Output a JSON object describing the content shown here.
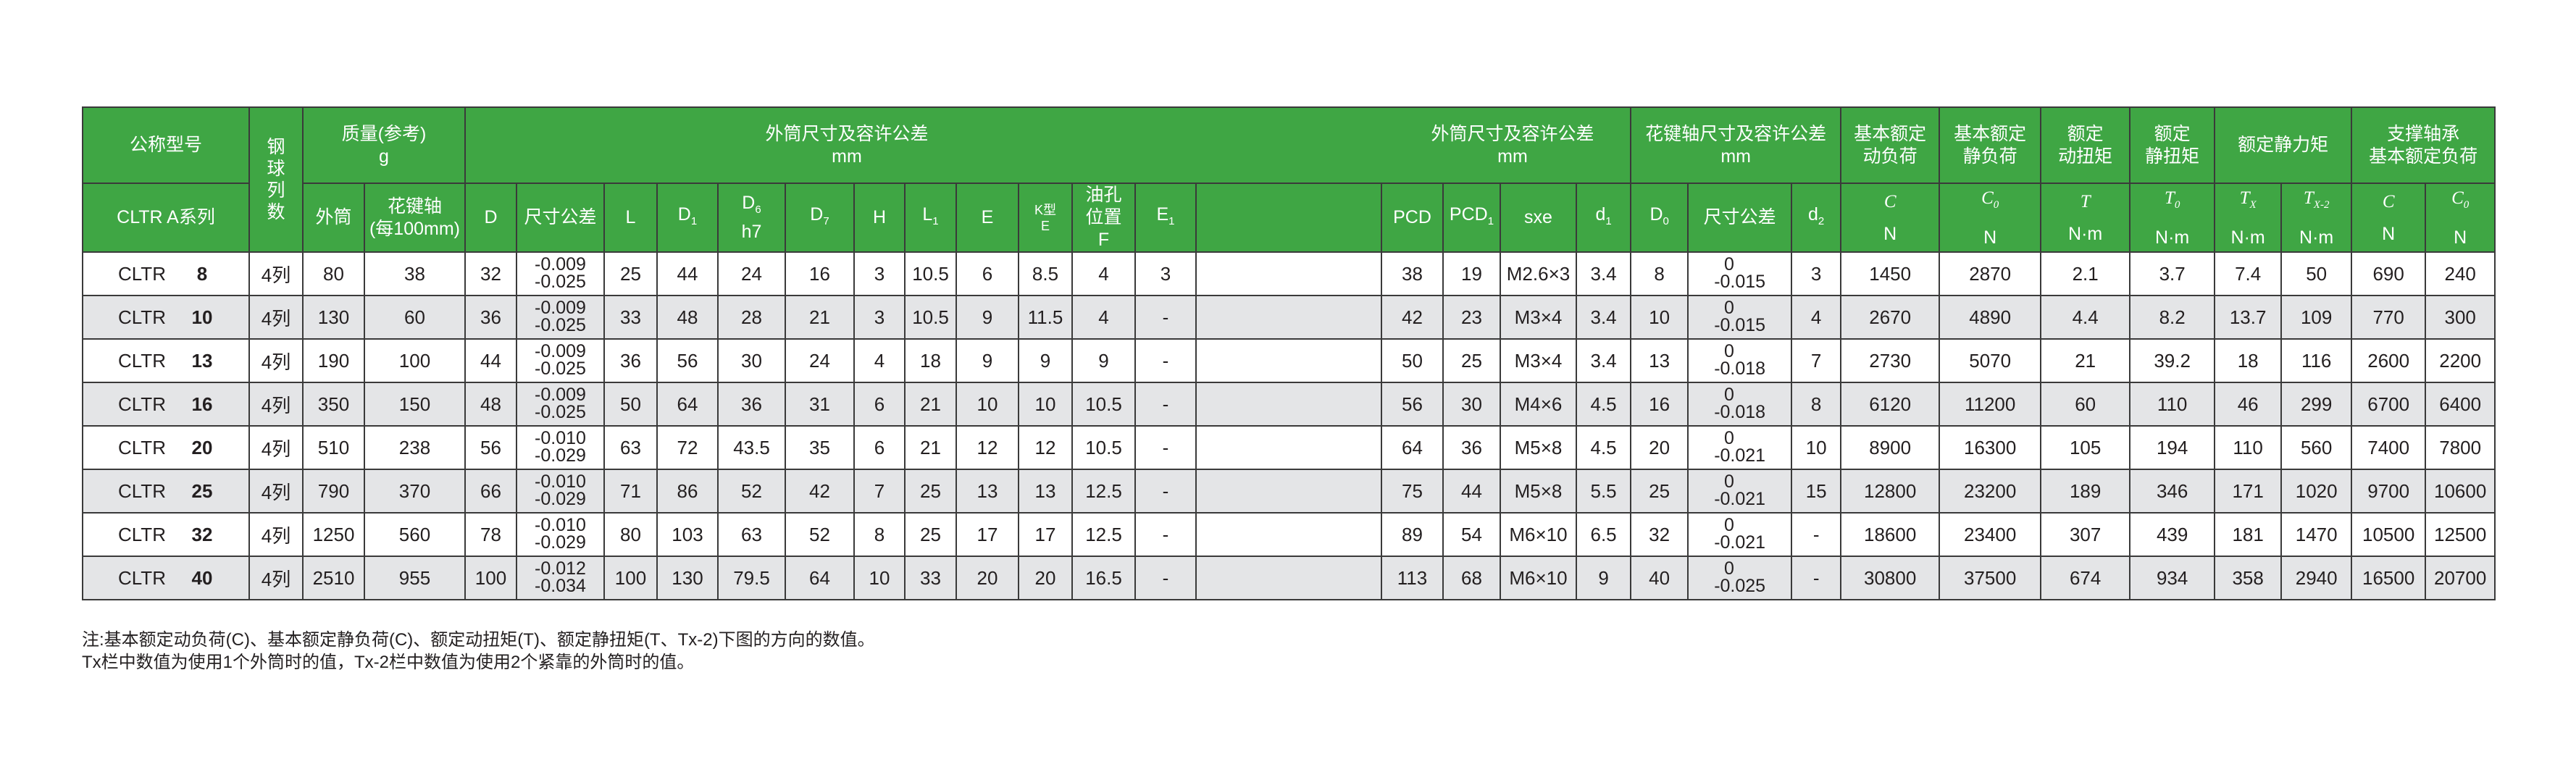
{
  "table": {
    "header_row1": {
      "model": "公称型号",
      "ball_rows": [
        "钢",
        "球",
        "列",
        "数"
      ],
      "mass": [
        "质量(参考)",
        "g"
      ],
      "outer_a": [
        "外筒尺寸及容许公差",
        "mm"
      ],
      "outer_b": [
        "外筒尺寸及容许公差",
        "mm"
      ],
      "shaft": [
        "花键轴尺寸及容许公差",
        "mm"
      ],
      "dyn_load": [
        "基本额定",
        "动负荷"
      ],
      "static_load": [
        "基本额定",
        "静负荷"
      ],
      "dyn_torque": [
        "额定",
        "动扭矩"
      ],
      "static_torque": [
        "额定",
        "静扭矩"
      ],
      "static_moment": [
        "额定静力矩"
      ],
      "support_bearing": [
        "支撑轴承",
        "基本额定负荷"
      ]
    },
    "series_label": "CLTR A系列",
    "header_row2": [
      {
        "text": "外筒"
      },
      {
        "text": "花键轴",
        "extra": [
          "(每100mm)"
        ]
      },
      {
        "text": "D"
      },
      {
        "text": "尺寸公差"
      },
      {
        "text": "L"
      },
      {
        "text": "D",
        "sub": "1"
      },
      {
        "text": "D",
        "sub": "6",
        "extra": [
          "h7"
        ]
      },
      {
        "text": "D",
        "sub": "7"
      },
      {
        "text": "H"
      },
      {
        "text": "L",
        "sub": "1"
      },
      {
        "text": "E"
      },
      {
        "text": "K型",
        "extra": [
          "E"
        ],
        "small": true
      },
      {
        "text": "油孔",
        "extra": [
          "位置",
          "F"
        ]
      },
      {
        "text": "E",
        "sub": "1"
      },
      {
        "text": ""
      },
      {
        "text": "PCD"
      },
      {
        "text": "PCD",
        "sub": "1"
      },
      {
        "text": "sxe"
      },
      {
        "text": "d",
        "sub": "1"
      },
      {
        "text": "D",
        "sub": "0"
      },
      {
        "text": "尺寸公差"
      },
      {
        "text": "d",
        "sub": "2"
      },
      {
        "text": "C",
        "italic": true,
        "extra": [
          "N"
        ]
      },
      {
        "text": "C",
        "sub": "0",
        "italic": true,
        "extra": [
          "N"
        ]
      },
      {
        "text": "T",
        "italic": true,
        "extra": [
          "N·m"
        ]
      },
      {
        "text": "T",
        "sub": "0",
        "italic": true,
        "extra": [
          "N·m"
        ]
      },
      {
        "text": "T",
        "sub": "X",
        "italic": true,
        "extra": [
          "N·m"
        ]
      },
      {
        "text": "T",
        "sub": "X-2",
        "italic": true,
        "extra": [
          "N·m"
        ]
      },
      {
        "text": "C",
        "italic": true,
        "extra": [
          "N"
        ]
      },
      {
        "text": "C",
        "sub": "0",
        "italic": true,
        "extra": [
          "N"
        ]
      }
    ],
    "rows": [
      {
        "prefix": "CLTR",
        "size": "8",
        "cells": [
          "4列",
          "80",
          "38",
          "32",
          [
            "-0.009",
            "-0.025"
          ],
          "25",
          "44",
          "24",
          "16",
          "3",
          "10.5",
          "6",
          "8.5",
          "4",
          "3",
          "",
          "38",
          "19",
          "M2.6×3",
          "3.4",
          "8",
          [
            "0",
            "-0.015"
          ],
          "3",
          "1450",
          "2870",
          "2.1",
          "3.7",
          "7.4",
          "50",
          "690",
          "240"
        ]
      },
      {
        "prefix": "CLTR",
        "size": "10",
        "cells": [
          "4列",
          "130",
          "60",
          "36",
          [
            "-0.009",
            "-0.025"
          ],
          "33",
          "48",
          "28",
          "21",
          "3",
          "10.5",
          "9",
          "11.5",
          "4",
          "-",
          "",
          "42",
          "23",
          "M3×4",
          "3.4",
          "10",
          [
            "0",
            "-0.015"
          ],
          "4",
          "2670",
          "4890",
          "4.4",
          "8.2",
          "13.7",
          "109",
          "770",
          "300"
        ]
      },
      {
        "prefix": "CLTR",
        "size": "13",
        "cells": [
          "4列",
          "190",
          "100",
          "44",
          [
            "-0.009",
            "-0.025"
          ],
          "36",
          "56",
          "30",
          "24",
          "4",
          "18",
          "9",
          "9",
          "9",
          "-",
          "",
          "50",
          "25",
          "M3×4",
          "3.4",
          "13",
          [
            "0",
            "-0.018"
          ],
          "7",
          "2730",
          "5070",
          "21",
          "39.2",
          "18",
          "116",
          "2600",
          "2200"
        ]
      },
      {
        "prefix": "CLTR",
        "size": "16",
        "cells": [
          "4列",
          "350",
          "150",
          "48",
          [
            "-0.009",
            "-0.025"
          ],
          "50",
          "64",
          "36",
          "31",
          "6",
          "21",
          "10",
          "10",
          "10.5",
          "-",
          "",
          "56",
          "30",
          "M4×6",
          "4.5",
          "16",
          [
            "0",
            "-0.018"
          ],
          "8",
          "6120",
          "11200",
          "60",
          "110",
          "46",
          "299",
          "6700",
          "6400"
        ]
      },
      {
        "prefix": "CLTR",
        "size": "20",
        "cells": [
          "4列",
          "510",
          "238",
          "56",
          [
            "-0.010",
            "-0.029"
          ],
          "63",
          "72",
          "43.5",
          "35",
          "6",
          "21",
          "12",
          "12",
          "10.5",
          "-",
          "",
          "64",
          "36",
          "M5×8",
          "4.5",
          "20",
          [
            "0",
            "-0.021"
          ],
          "10",
          "8900",
          "16300",
          "105",
          "194",
          "110",
          "560",
          "7400",
          "7800"
        ]
      },
      {
        "prefix": "CLTR",
        "size": "25",
        "cells": [
          "4列",
          "790",
          "370",
          "66",
          [
            "-0.010",
            "-0.029"
          ],
          "71",
          "86",
          "52",
          "42",
          "7",
          "25",
          "13",
          "13",
          "12.5",
          "-",
          "",
          "75",
          "44",
          "M5×8",
          "5.5",
          "25",
          [
            "0",
            "-0.021"
          ],
          "15",
          "12800",
          "23200",
          "189",
          "346",
          "171",
          "1020",
          "9700",
          "10600"
        ]
      },
      {
        "prefix": "CLTR",
        "size": "32",
        "cells": [
          "4列",
          "1250",
          "560",
          "78",
          [
            "-0.010",
            "-0.029"
          ],
          "80",
          "103",
          "63",
          "52",
          "8",
          "25",
          "17",
          "17",
          "12.5",
          "-",
          "",
          "89",
          "54",
          "M6×10",
          "6.5",
          "32",
          [
            "0",
            "-0.021"
          ],
          "-",
          "18600",
          "23400",
          "307",
          "439",
          "181",
          "1470",
          "10500",
          "12500"
        ]
      },
      {
        "prefix": "CLTR",
        "size": "40",
        "cells": [
          "4列",
          "2510",
          "955",
          "100",
          [
            "-0.012",
            "-0.034"
          ],
          "100",
          "130",
          "79.5",
          "64",
          "10",
          "33",
          "20",
          "20",
          "16.5",
          "-",
          "",
          "113",
          "68",
          "M6×10",
          "9",
          "40",
          [
            "0",
            "-0.025"
          ],
          "-",
          "30800",
          "37500",
          "674",
          "934",
          "358",
          "2940",
          "16500",
          "20700"
        ]
      }
    ]
  },
  "notes": [
    "注:基本额定动负荷(C)、基本额定静负荷(C)、额定动扭矩(T)、额定静扭矩(T、Tx-2)下图的方向的数值。",
    "Tx栏中数值为使用1个外筒时的值，Tx-2栏中数值为使用2个紧靠的外筒时的值。"
  ],
  "colors": {
    "header_bg": "#3fa644",
    "header_text": "#ffffff",
    "row_alt": "#e4e5e7",
    "border": "#3a3a3a"
  }
}
